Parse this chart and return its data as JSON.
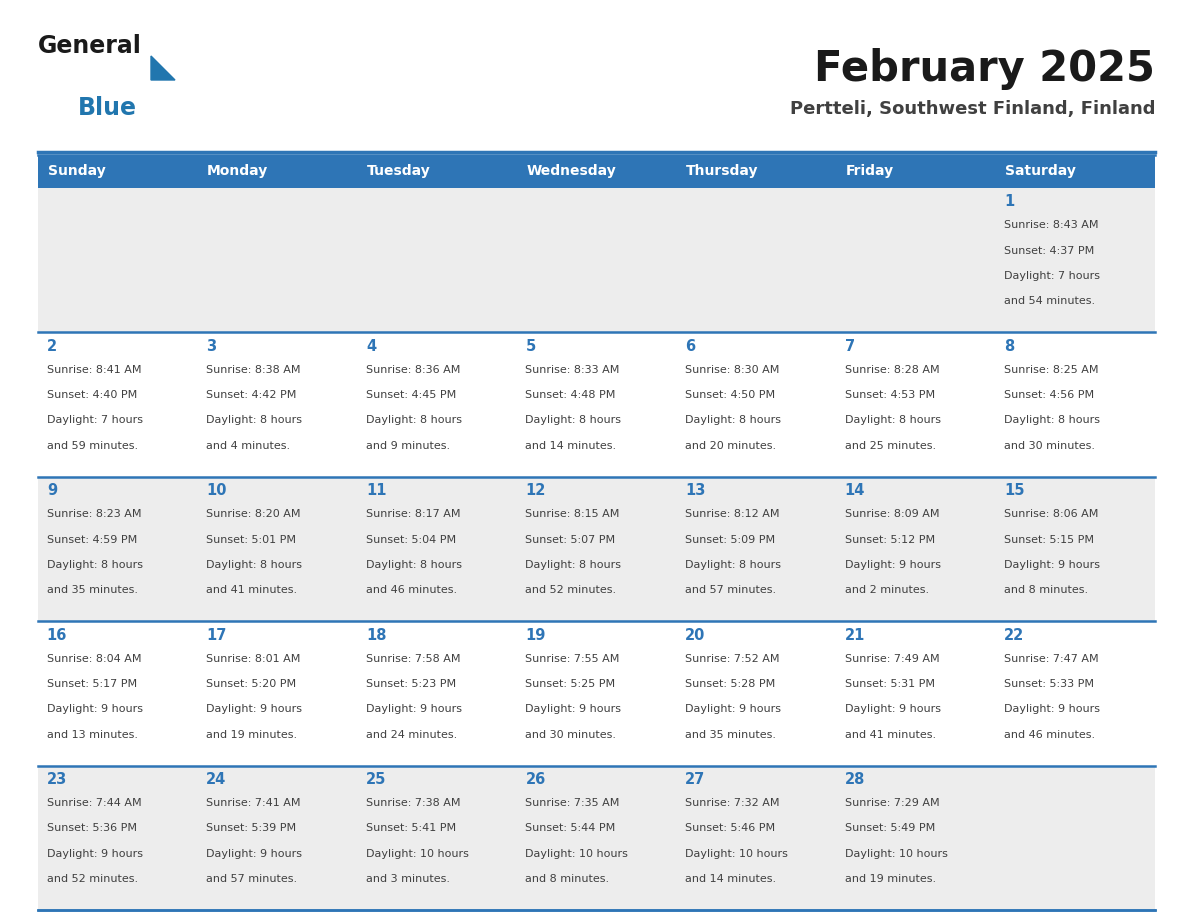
{
  "title": "February 2025",
  "subtitle": "Pertteli, Southwest Finland, Finland",
  "header_bg": "#2E75B6",
  "header_text_color": "#FFFFFF",
  "day_names": [
    "Sunday",
    "Monday",
    "Tuesday",
    "Wednesday",
    "Thursday",
    "Friday",
    "Saturday"
  ],
  "cell_bg_gray": "#EDEDED",
  "cell_bg_white": "#FFFFFF",
  "cell_border_color": "#2E75B6",
  "day_number_color": "#2E75B6",
  "info_text_color": "#404040",
  "title_color": "#1A1A1A",
  "subtitle_color": "#404040",
  "logo_general_color": "#1A1A1A",
  "logo_blue_color": "#2176AE",
  "weeks": [
    [
      {
        "day": null,
        "info": ""
      },
      {
        "day": null,
        "info": ""
      },
      {
        "day": null,
        "info": ""
      },
      {
        "day": null,
        "info": ""
      },
      {
        "day": null,
        "info": ""
      },
      {
        "day": null,
        "info": ""
      },
      {
        "day": 1,
        "info": "Sunrise: 8:43 AM\nSunset: 4:37 PM\nDaylight: 7 hours\nand 54 minutes."
      }
    ],
    [
      {
        "day": 2,
        "info": "Sunrise: 8:41 AM\nSunset: 4:40 PM\nDaylight: 7 hours\nand 59 minutes."
      },
      {
        "day": 3,
        "info": "Sunrise: 8:38 AM\nSunset: 4:42 PM\nDaylight: 8 hours\nand 4 minutes."
      },
      {
        "day": 4,
        "info": "Sunrise: 8:36 AM\nSunset: 4:45 PM\nDaylight: 8 hours\nand 9 minutes."
      },
      {
        "day": 5,
        "info": "Sunrise: 8:33 AM\nSunset: 4:48 PM\nDaylight: 8 hours\nand 14 minutes."
      },
      {
        "day": 6,
        "info": "Sunrise: 8:30 AM\nSunset: 4:50 PM\nDaylight: 8 hours\nand 20 minutes."
      },
      {
        "day": 7,
        "info": "Sunrise: 8:28 AM\nSunset: 4:53 PM\nDaylight: 8 hours\nand 25 minutes."
      },
      {
        "day": 8,
        "info": "Sunrise: 8:25 AM\nSunset: 4:56 PM\nDaylight: 8 hours\nand 30 minutes."
      }
    ],
    [
      {
        "day": 9,
        "info": "Sunrise: 8:23 AM\nSunset: 4:59 PM\nDaylight: 8 hours\nand 35 minutes."
      },
      {
        "day": 10,
        "info": "Sunrise: 8:20 AM\nSunset: 5:01 PM\nDaylight: 8 hours\nand 41 minutes."
      },
      {
        "day": 11,
        "info": "Sunrise: 8:17 AM\nSunset: 5:04 PM\nDaylight: 8 hours\nand 46 minutes."
      },
      {
        "day": 12,
        "info": "Sunrise: 8:15 AM\nSunset: 5:07 PM\nDaylight: 8 hours\nand 52 minutes."
      },
      {
        "day": 13,
        "info": "Sunrise: 8:12 AM\nSunset: 5:09 PM\nDaylight: 8 hours\nand 57 minutes."
      },
      {
        "day": 14,
        "info": "Sunrise: 8:09 AM\nSunset: 5:12 PM\nDaylight: 9 hours\nand 2 minutes."
      },
      {
        "day": 15,
        "info": "Sunrise: 8:06 AM\nSunset: 5:15 PM\nDaylight: 9 hours\nand 8 minutes."
      }
    ],
    [
      {
        "day": 16,
        "info": "Sunrise: 8:04 AM\nSunset: 5:17 PM\nDaylight: 9 hours\nand 13 minutes."
      },
      {
        "day": 17,
        "info": "Sunrise: 8:01 AM\nSunset: 5:20 PM\nDaylight: 9 hours\nand 19 minutes."
      },
      {
        "day": 18,
        "info": "Sunrise: 7:58 AM\nSunset: 5:23 PM\nDaylight: 9 hours\nand 24 minutes."
      },
      {
        "day": 19,
        "info": "Sunrise: 7:55 AM\nSunset: 5:25 PM\nDaylight: 9 hours\nand 30 minutes."
      },
      {
        "day": 20,
        "info": "Sunrise: 7:52 AM\nSunset: 5:28 PM\nDaylight: 9 hours\nand 35 minutes."
      },
      {
        "day": 21,
        "info": "Sunrise: 7:49 AM\nSunset: 5:31 PM\nDaylight: 9 hours\nand 41 minutes."
      },
      {
        "day": 22,
        "info": "Sunrise: 7:47 AM\nSunset: 5:33 PM\nDaylight: 9 hours\nand 46 minutes."
      }
    ],
    [
      {
        "day": 23,
        "info": "Sunrise: 7:44 AM\nSunset: 5:36 PM\nDaylight: 9 hours\nand 52 minutes."
      },
      {
        "day": 24,
        "info": "Sunrise: 7:41 AM\nSunset: 5:39 PM\nDaylight: 9 hours\nand 57 minutes."
      },
      {
        "day": 25,
        "info": "Sunrise: 7:38 AM\nSunset: 5:41 PM\nDaylight: 10 hours\nand 3 minutes."
      },
      {
        "day": 26,
        "info": "Sunrise: 7:35 AM\nSunset: 5:44 PM\nDaylight: 10 hours\nand 8 minutes."
      },
      {
        "day": 27,
        "info": "Sunrise: 7:32 AM\nSunset: 5:46 PM\nDaylight: 10 hours\nand 14 minutes."
      },
      {
        "day": 28,
        "info": "Sunrise: 7:29 AM\nSunset: 5:49 PM\nDaylight: 10 hours\nand 19 minutes."
      },
      {
        "day": null,
        "info": ""
      }
    ]
  ]
}
